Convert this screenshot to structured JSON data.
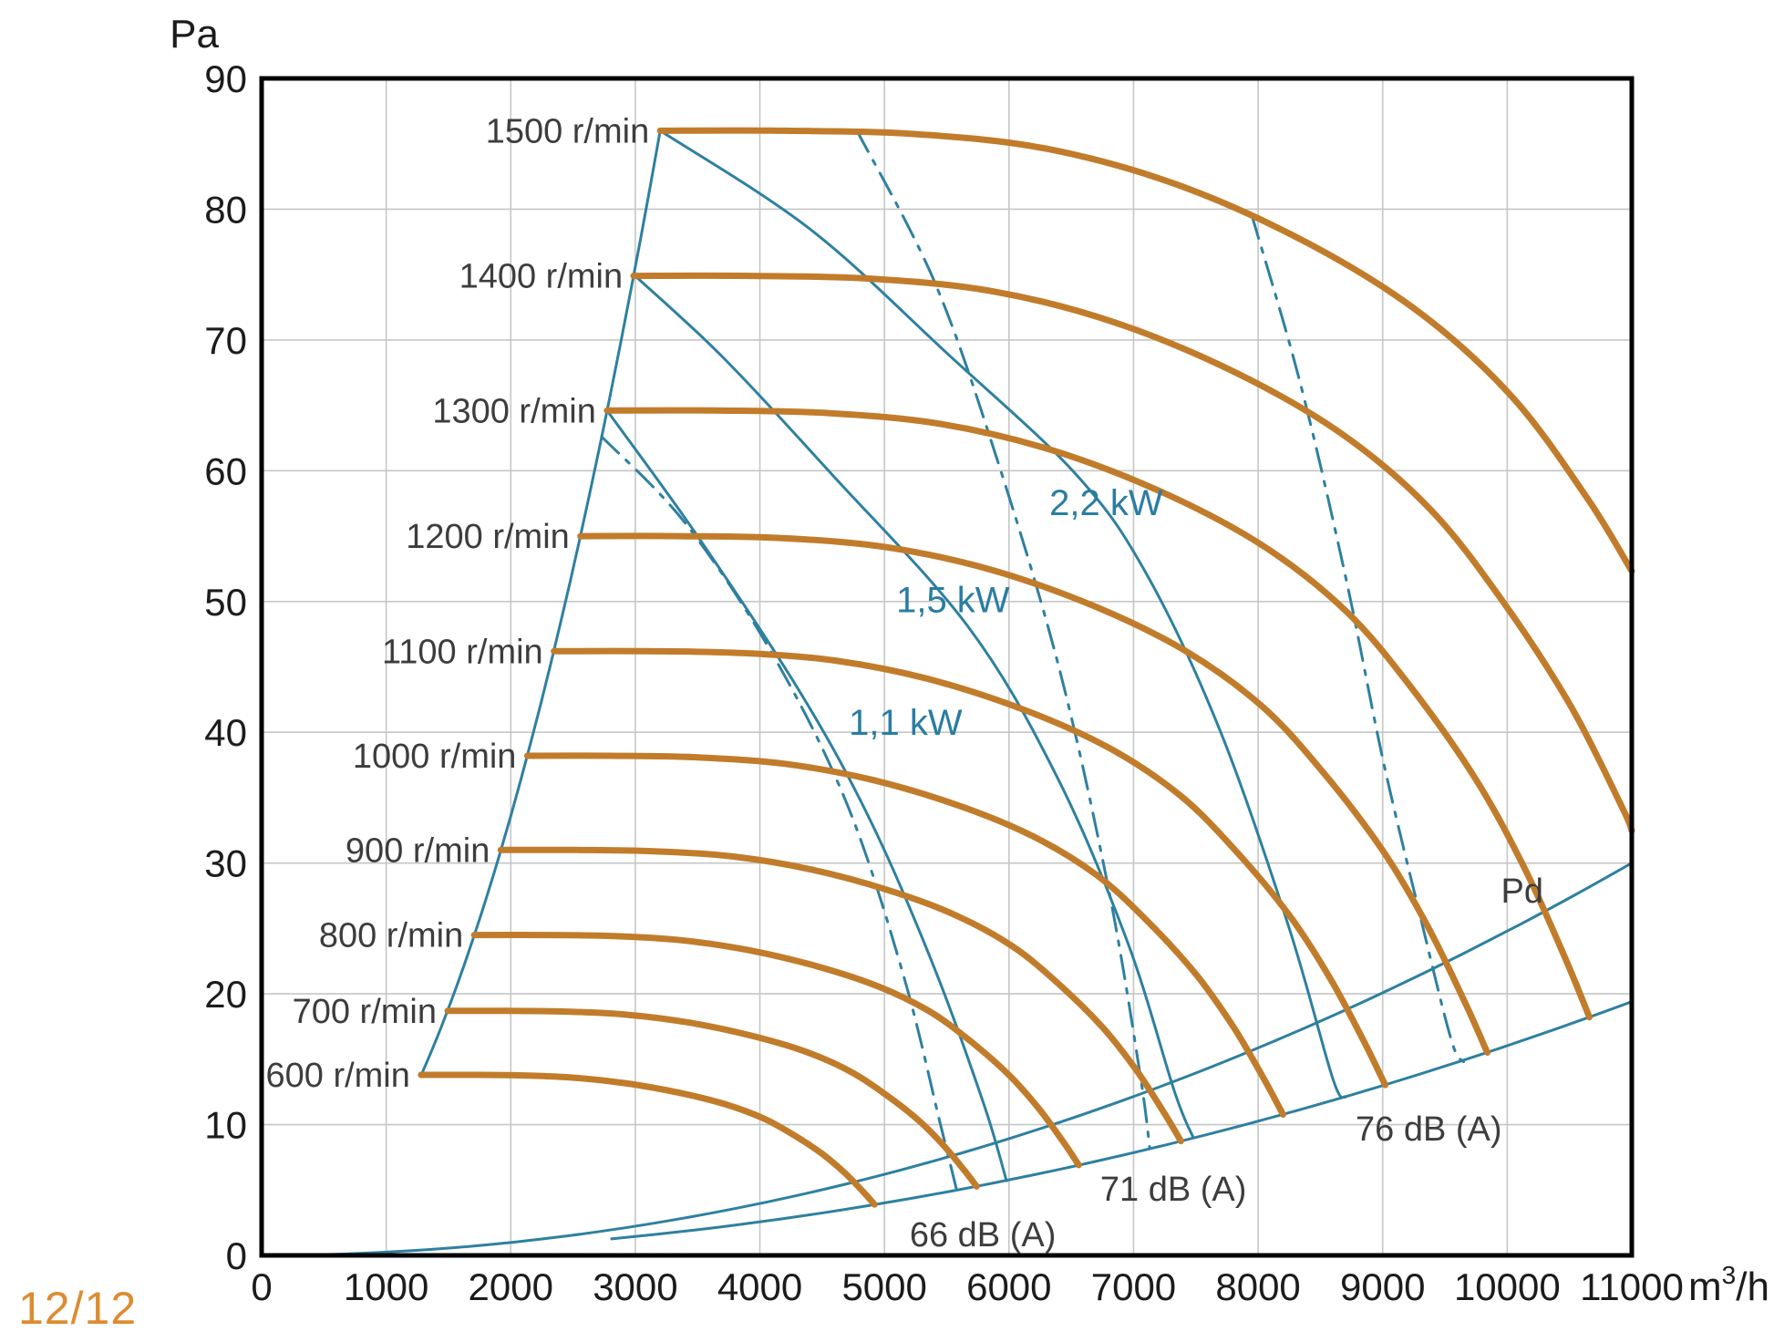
{
  "page": {
    "page_indicator": "12/12"
  },
  "chart_data": {
    "type": "line",
    "title": "",
    "xlabel": "m³/h",
    "ylabel": "Pa",
    "xlim": [
      0,
      11000
    ],
    "ylim": [
      0,
      90
    ],
    "grid": true,
    "x_ticks": [
      0,
      1000,
      2000,
      3000,
      4000,
      5000,
      6000,
      7000,
      8000,
      9000,
      10000,
      11000
    ],
    "y_ticks": [
      0,
      10,
      20,
      30,
      40,
      50,
      60,
      70,
      80,
      90
    ],
    "colors": {
      "fan_curve": "#c17c2b",
      "aux_curve": "#2e80a0",
      "kw_label": "#2a7da2",
      "label_text": "#3d3d3d",
      "tick_text": "#1c1c1c",
      "grid": "#c6c6c6",
      "axis": "#000000",
      "page_number": "#dd8c30"
    },
    "fan_curves": {
      "description": "Fan pressure curves per rotation speed; each runs from the surge line (q_start, p_flat) flat, then droops to (q_end, p_end) on the max-volume boundary. Shared dimensionless profile: u = (m3/h)/rpm, w = P/p_flat.",
      "profile": [
        [
          2.133,
          1.0
        ],
        [
          2.8,
          1.0
        ],
        [
          3.5,
          0.997
        ],
        [
          4.2,
          0.984
        ],
        [
          4.9,
          0.952
        ],
        [
          5.6,
          0.9
        ],
        [
          6.2,
          0.838
        ],
        [
          6.7,
          0.762
        ],
        [
          7.1,
          0.672
        ],
        [
          7.5,
          0.563
        ],
        [
          7.8,
          0.458
        ],
        [
          8.05,
          0.352
        ],
        [
          8.2,
          0.282
        ]
      ],
      "series": [
        {
          "label": "600 r/min",
          "rpm": 600,
          "q_start": 1280,
          "p_flat": 13.8,
          "q_end": 4920,
          "p_end": 3.9
        },
        {
          "label": "700 r/min",
          "rpm": 700,
          "q_start": 1493,
          "p_flat": 18.7,
          "q_end": 5740,
          "p_end": 5.3
        },
        {
          "label": "800 r/min",
          "rpm": 800,
          "q_start": 1707,
          "p_flat": 24.5,
          "q_end": 6560,
          "p_end": 6.9
        },
        {
          "label": "900 r/min",
          "rpm": 900,
          "q_start": 1920,
          "p_flat": 31.0,
          "q_end": 7380,
          "p_end": 8.7
        },
        {
          "label": "1000 r/min",
          "rpm": 1000,
          "q_start": 2133,
          "p_flat": 38.2,
          "q_end": 8200,
          "p_end": 10.8
        },
        {
          "label": "1100 r/min",
          "rpm": 1100,
          "q_start": 2347,
          "p_flat": 46.2,
          "q_end": 9020,
          "p_end": 13.0
        },
        {
          "label": "1200 r/min",
          "rpm": 1200,
          "q_start": 2560,
          "p_flat": 55.0,
          "q_end": 9840,
          "p_end": 15.5
        },
        {
          "label": "1300 r/min",
          "rpm": 1300,
          "q_start": 2773,
          "p_flat": 64.6,
          "q_end": 10660,
          "p_end": 18.2
        },
        {
          "label": "1400 r/min",
          "rpm": 1400,
          "q_start": 2987,
          "p_flat": 74.9,
          "q_end": 11000,
          "p_end": 33.0
        },
        {
          "label": "1500 r/min",
          "rpm": 1500,
          "q_start": 3200,
          "p_flat": 86.0,
          "q_end": 11000,
          "p_end": 52.0
        }
      ]
    },
    "surge_line": {
      "description": "Left stability boundary through the fan-curve start points, parabola P = 86*(Q/3200)^2",
      "q_from": 1280,
      "q_to": 3200,
      "p_at_q_to": 86
    },
    "boundary_curve": {
      "description": "Max-volume boundary through fan-curve end points, P = 19.4*(Q/11000)^2",
      "q_from": 2800,
      "q_to": 11000,
      "p_at_max": 19.4
    },
    "pd_curve": {
      "label": "Pd",
      "description": "Dynamic pressure curve, P = 30*(Q/11000)^2",
      "q_from": 250,
      "q_to": 11000,
      "p_at_max": 30
    },
    "power_curves": [
      {
        "label": "1,1 kW",
        "points": [
          [
            2773,
            64.6
          ],
          [
            3500,
            55
          ],
          [
            4340,
            42.8
          ],
          [
            4900,
            33
          ],
          [
            5400,
            22
          ],
          [
            5800,
            11.5
          ],
          [
            5980,
            5.7
          ]
        ]
      },
      {
        "label": "1,5 kW",
        "points": [
          [
            2987,
            75
          ],
          [
            3700,
            68.7
          ],
          [
            4580,
            59.7
          ],
          [
            5670,
            48.1
          ],
          [
            6380,
            36.7
          ],
          [
            6950,
            24
          ],
          [
            7330,
            12.5
          ],
          [
            7480,
            9.0
          ]
        ]
      },
      {
        "label": "2,2 kW",
        "points": [
          [
            3200,
            86
          ],
          [
            4400,
            78.5
          ],
          [
            5500,
            69
          ],
          [
            6540,
            59.7
          ],
          [
            7110,
            52
          ],
          [
            7700,
            40
          ],
          [
            8250,
            25
          ],
          [
            8600,
            13.5
          ],
          [
            8700,
            12.1
          ]
        ]
      }
    ],
    "noise_curves": [
      {
        "label": "66 dB (A)",
        "points": [
          [
            2730,
            62.6
          ],
          [
            3400,
            56
          ],
          [
            4100,
            46
          ],
          [
            4700,
            34.5
          ],
          [
            5150,
            21.5
          ],
          [
            5450,
            10
          ],
          [
            5580,
            5.0
          ]
        ]
      },
      {
        "label": "71 dB (A)",
        "points": [
          [
            4780,
            86
          ],
          [
            5400,
            74.5
          ],
          [
            5900,
            61
          ],
          [
            6400,
            45
          ],
          [
            6800,
            28
          ],
          [
            7050,
            14
          ],
          [
            7130,
            8.2
          ]
        ]
      },
      {
        "label": "76 dB (A)",
        "points": [
          [
            7950,
            79.5
          ],
          [
            8330,
            67
          ],
          [
            8700,
            52
          ],
          [
            9000,
            38
          ],
          [
            9300,
            26
          ],
          [
            9550,
            16.5
          ],
          [
            9650,
            14.8
          ]
        ]
      }
    ],
    "curve_labels": [
      {
        "text": "1,1 kW",
        "q": 5170,
        "p": 40.7,
        "cls": "kw-label",
        "anchor": "middle"
      },
      {
        "text": "1,5 kW",
        "q": 5550,
        "p": 50.1,
        "cls": "kw-label",
        "anchor": "middle"
      },
      {
        "text": "2,2 kW",
        "q": 6780,
        "p": 57.5,
        "cls": "kw-label",
        "anchor": "middle"
      },
      {
        "text": "66 dB (A)",
        "q": 5790,
        "p": 1.6,
        "cls": "db-label",
        "anchor": "middle"
      },
      {
        "text": "71 dB (A)",
        "q": 7320,
        "p": 5.1,
        "cls": "db-label",
        "anchor": "middle"
      },
      {
        "text": "76 dB (A)",
        "q": 9370,
        "p": 9.7,
        "cls": "db-label",
        "anchor": "middle"
      },
      {
        "text": "Pd",
        "q": 10120,
        "p": 27.9,
        "cls": "pd-label",
        "anchor": "middle"
      }
    ],
    "legend_position": "none"
  }
}
